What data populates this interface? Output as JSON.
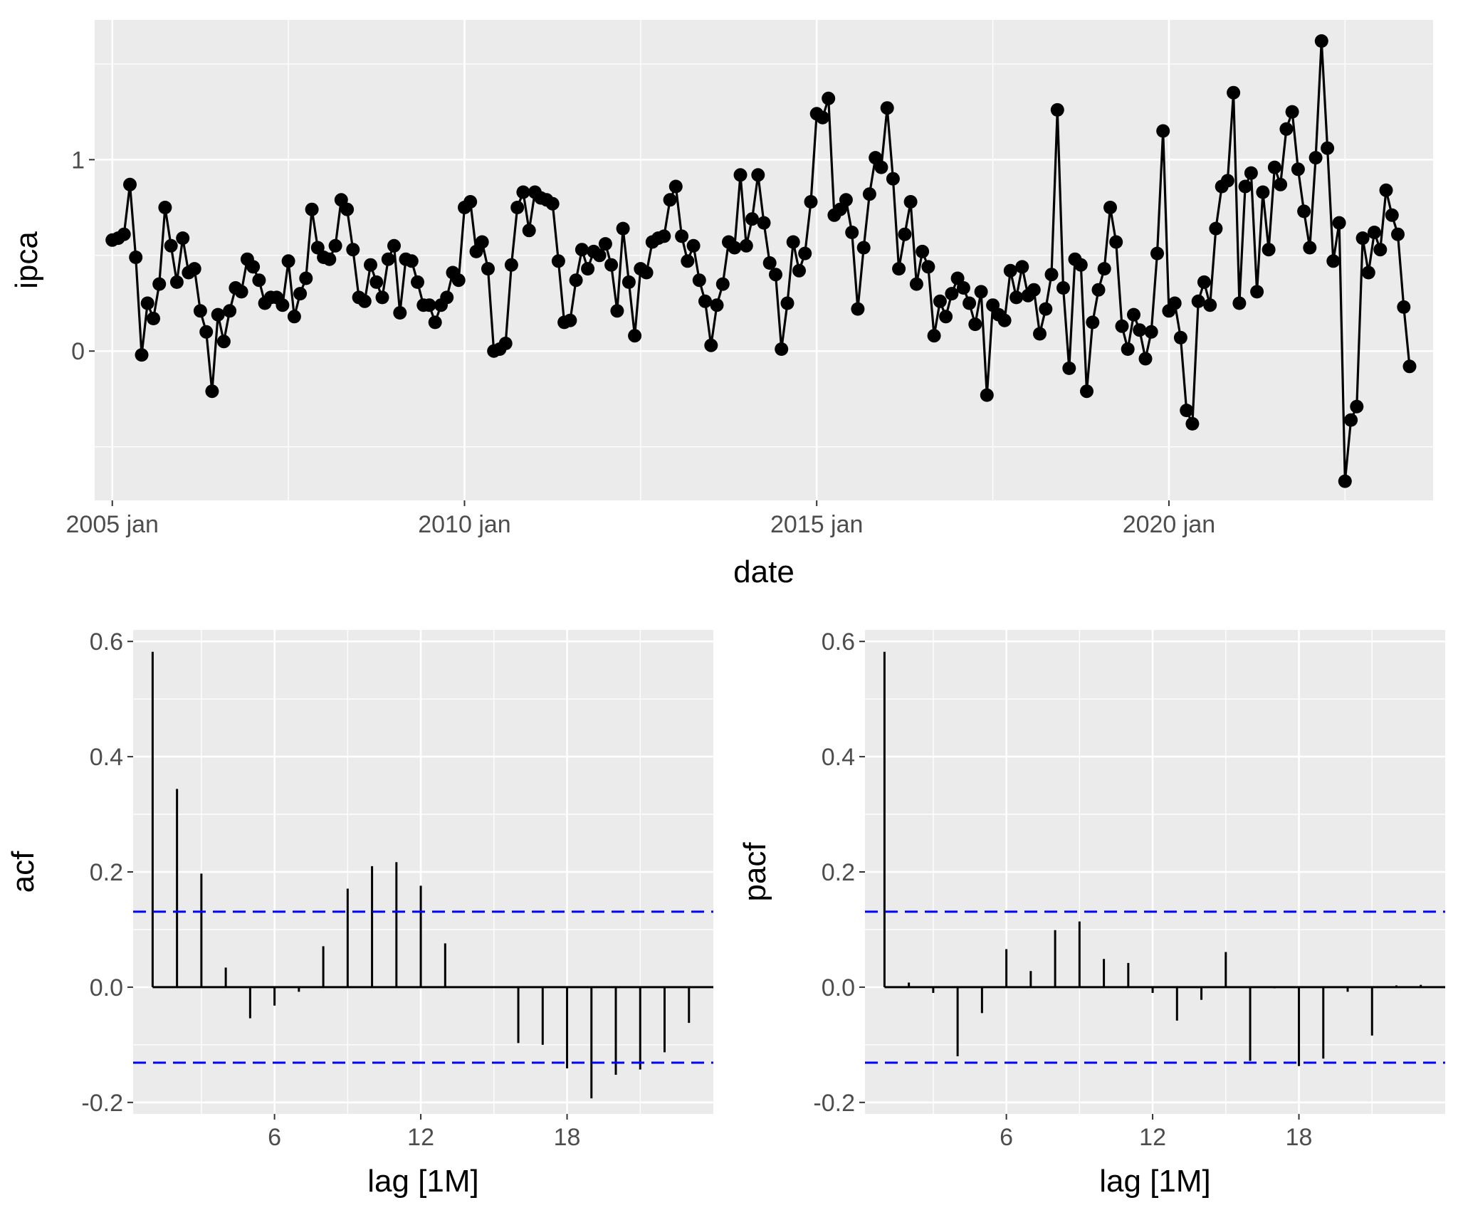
{
  "chart_data": [
    {
      "type": "line",
      "xlabel": "date",
      "ylabel": "ipca",
      "x_start": "2005 jan",
      "x_frequency": "monthly",
      "xlim_years": [
        2004.75,
        2023.75
      ],
      "ylim": [
        -0.78,
        1.73
      ],
      "x_ticks": [
        {
          "year": 2005,
          "label": "2005 jan"
        },
        {
          "year": 2010,
          "label": "2010 jan"
        },
        {
          "year": 2015,
          "label": "2015 jan"
        },
        {
          "year": 2020,
          "label": "2020 jan"
        }
      ],
      "y_ticks": [
        {
          "value": 0,
          "label": "0"
        },
        {
          "value": 1,
          "label": "1"
        }
      ],
      "values": [
        0.58,
        0.59,
        0.61,
        0.87,
        0.49,
        -0.02,
        0.25,
        0.17,
        0.35,
        0.75,
        0.55,
        0.36,
        0.59,
        0.41,
        0.43,
        0.21,
        0.1,
        -0.21,
        0.19,
        0.05,
        0.21,
        0.33,
        0.31,
        0.48,
        0.44,
        0.37,
        0.25,
        0.28,
        0.28,
        0.24,
        0.47,
        0.18,
        0.3,
        0.38,
        0.74,
        0.54,
        0.49,
        0.48,
        0.55,
        0.79,
        0.74,
        0.53,
        0.28,
        0.26,
        0.45,
        0.36,
        0.28,
        0.48,
        0.55,
        0.2,
        0.48,
        0.47,
        0.36,
        0.24,
        0.24,
        0.15,
        0.24,
        0.28,
        0.41,
        0.37,
        0.75,
        0.78,
        0.52,
        0.57,
        0.43,
        0.0,
        0.01,
        0.04,
        0.45,
        0.75,
        0.83,
        0.63,
        0.83,
        0.8,
        0.79,
        0.77,
        0.47,
        0.15,
        0.16,
        0.37,
        0.53,
        0.43,
        0.52,
        0.5,
        0.56,
        0.45,
        0.21,
        0.64,
        0.36,
        0.08,
        0.43,
        0.41,
        0.57,
        0.59,
        0.6,
        0.79,
        0.86,
        0.6,
        0.47,
        0.55,
        0.37,
        0.26,
        0.03,
        0.24,
        0.35,
        0.57,
        0.54,
        0.92,
        0.55,
        0.69,
        0.92,
        0.67,
        0.46,
        0.4,
        0.01,
        0.25,
        0.57,
        0.42,
        0.51,
        0.78,
        1.24,
        1.22,
        1.32,
        0.71,
        0.74,
        0.79,
        0.62,
        0.22,
        0.54,
        0.82,
        1.01,
        0.96,
        1.27,
        0.9,
        0.43,
        0.61,
        0.78,
        0.35,
        0.52,
        0.44,
        0.08,
        0.26,
        0.18,
        0.3,
        0.38,
        0.33,
        0.25,
        0.14,
        0.31,
        -0.23,
        0.24,
        0.19,
        0.16,
        0.42,
        0.28,
        0.44,
        0.29,
        0.32,
        0.09,
        0.22,
        0.4,
        1.26,
        0.33,
        -0.09,
        0.48,
        0.45,
        -0.21,
        0.15,
        0.32,
        0.43,
        0.75,
        0.57,
        0.13,
        0.01,
        0.19,
        0.11,
        -0.04,
        0.1,
        0.51,
        1.15,
        0.21,
        0.25,
        0.07,
        -0.31,
        -0.38,
        0.26,
        0.36,
        0.24,
        0.64,
        0.86,
        0.89,
        1.35,
        0.25,
        0.86,
        0.93,
        0.31,
        0.83,
        0.53,
        0.96,
        0.87,
        1.16,
        1.25,
        0.95,
        0.73,
        0.54,
        1.01,
        1.62,
        1.06,
        0.47,
        0.67,
        -0.68,
        -0.36,
        -0.29,
        0.59,
        0.41,
        0.62,
        0.53,
        0.84,
        0.71,
        0.61,
        0.23,
        -0.08
      ]
    },
    {
      "type": "bar",
      "subtype": "acf",
      "xlabel": "lag [1M]",
      "ylabel": "acf",
      "xlim": [
        0.2,
        24.0
      ],
      "ylim": [
        -0.22,
        0.62
      ],
      "x_ticks": [
        {
          "value": 6,
          "label": "6"
        },
        {
          "value": 12,
          "label": "12"
        },
        {
          "value": 18,
          "label": "18"
        }
      ],
      "y_ticks": [
        {
          "value": -0.2,
          "label": "-0.2"
        },
        {
          "value": 0.0,
          "label": "0.0"
        },
        {
          "value": 0.2,
          "label": "0.2"
        },
        {
          "value": 0.4,
          "label": "0.4"
        },
        {
          "value": 0.6,
          "label": "0.6"
        }
      ],
      "confidence_bound": 0.131,
      "lags": [
        1,
        2,
        3,
        4,
        5,
        6,
        7,
        8,
        9,
        10,
        11,
        12,
        13,
        14,
        15,
        16,
        17,
        18,
        19,
        20,
        21,
        22,
        23
      ],
      "values": [
        0.582,
        0.344,
        0.197,
        0.034,
        -0.054,
        -0.032,
        -0.008,
        0.071,
        0.171,
        0.21,
        0.217,
        0.176,
        0.076,
        0.0,
        0.0,
        -0.097,
        -0.1,
        -0.141,
        -0.193,
        -0.152,
        -0.143,
        -0.113,
        -0.062
      ]
    },
    {
      "type": "bar",
      "subtype": "pacf",
      "xlabel": "lag [1M]",
      "ylabel": "pacf",
      "xlim": [
        0.2,
        24.0
      ],
      "ylim": [
        -0.22,
        0.62
      ],
      "x_ticks": [
        {
          "value": 6,
          "label": "6"
        },
        {
          "value": 12,
          "label": "12"
        },
        {
          "value": 18,
          "label": "18"
        }
      ],
      "y_ticks": [
        {
          "value": -0.2,
          "label": "-0.2"
        },
        {
          "value": 0.0,
          "label": "0.0"
        },
        {
          "value": 0.2,
          "label": "0.2"
        },
        {
          "value": 0.4,
          "label": "0.4"
        },
        {
          "value": 0.6,
          "label": "0.6"
        }
      ],
      "confidence_bound": 0.131,
      "lags": [
        1,
        2,
        3,
        4,
        5,
        6,
        7,
        8,
        9,
        10,
        11,
        12,
        13,
        14,
        15,
        16,
        17,
        18,
        19,
        20,
        21,
        22,
        23
      ],
      "values": [
        0.582,
        0.008,
        -0.01,
        -0.12,
        -0.045,
        0.066,
        0.028,
        0.099,
        0.114,
        0.049,
        0.042,
        -0.01,
        -0.058,
        -0.022,
        0.061,
        -0.128,
        -0.002,
        -0.137,
        -0.124,
        -0.008,
        -0.084,
        0.003,
        0.004
      ]
    }
  ],
  "colors": {
    "panel_background": "#ebebeb",
    "grid_line": "#ffffff",
    "series": "#000000",
    "confidence_line": "#0000ff",
    "tick_text": "#4d4d4d",
    "tick_mark": "#333333",
    "title_text": "#000000"
  }
}
